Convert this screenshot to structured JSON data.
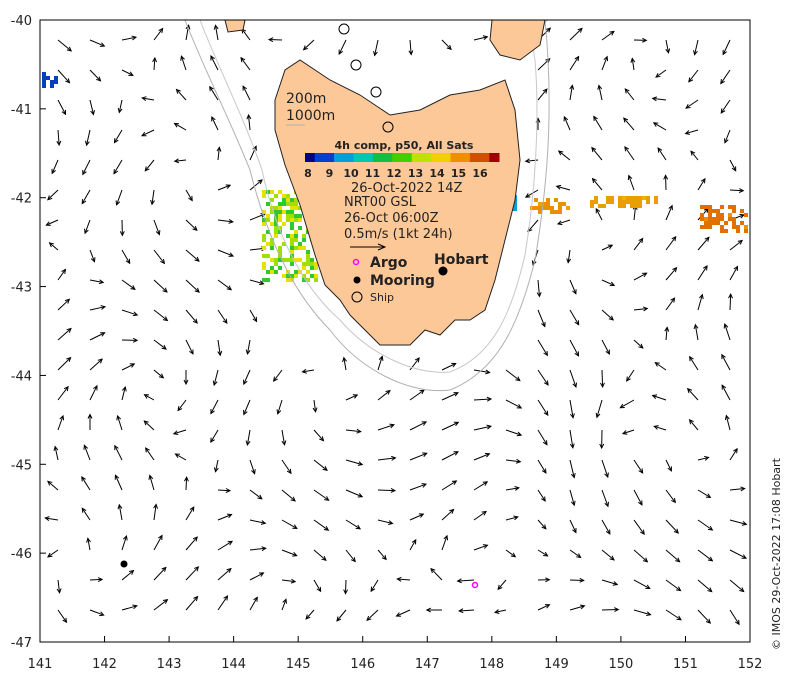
{
  "map": {
    "x_ticks": [
      "141",
      "142",
      "143",
      "144",
      "145",
      "146",
      "147",
      "148",
      "149",
      "150",
      "151",
      "152"
    ],
    "y_ticks": [
      "-40",
      "-41",
      "-42",
      "-43",
      "-44",
      "-45",
      "-46",
      "-47"
    ],
    "contours": {
      "c1": "200m",
      "c2": "1000m"
    },
    "colorbar": {
      "title": "4h comp, p50, All Sats",
      "ticks": [
        "8",
        "9",
        "10",
        "11",
        "12",
        "13",
        "14",
        "15",
        "16"
      ],
      "colors": [
        "#00008b",
        "#0040d0",
        "#00a0e0",
        "#00c8b0",
        "#10c040",
        "#40d000",
        "#c0e000",
        "#f0d000",
        "#f09000",
        "#d05000",
        "#a00000"
      ]
    },
    "sst_time": "26-Oct-2022 14Z",
    "current_product": "NRT00 GSL",
    "current_time": "26-Oct 06:00Z",
    "scale_label": "0.5m/s (1kt 24h)",
    "legend": {
      "argo": "Argo",
      "mooring": "Mooring",
      "ship": "Ship"
    },
    "city": "Hobart",
    "credit": "© IMOS 29-Oct-2022 17:08 Hobart",
    "colors": {
      "land": "#fdc898",
      "argo": "#ff00ff",
      "contour": "#b0b0b0"
    }
  }
}
